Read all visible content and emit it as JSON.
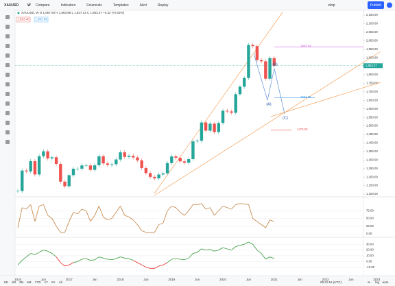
{
  "toolbar": {
    "symbol": "XAUUSD",
    "interval": "W",
    "buttons": [
      "Compare",
      "Indicators",
      "Financials",
      "Templates",
      "Alert",
      "Replay"
    ],
    "user": "vikrp",
    "publish": "Publish"
  },
  "legend": {
    "ohlc": "XAUUSD, W  O 1,857.00  H 1,863.86  L 1,837.13  C 1,853.27  +0.32 (+0.02%)",
    "bid": "1,853.46",
    "ask": "1,853.69"
  },
  "chart": {
    "type": "candlestick",
    "closes": [
      1118,
      1238,
      1233,
      1293,
      1215,
      1322,
      1351,
      1309,
      1316,
      1277,
      1173,
      1146,
      1211,
      1249,
      1249,
      1268,
      1268,
      1242,
      1269,
      1322,
      1280,
      1271,
      1275,
      1303,
      1345,
      1318,
      1325,
      1315,
      1298,
      1253,
      1223,
      1201,
      1192,
      1215,
      1222,
      1282,
      1321,
      1313,
      1292,
      1284,
      1305,
      1409,
      1413,
      1520,
      1472,
      1513,
      1464,
      1517,
      1589,
      1585,
      1577,
      1686,
      1730,
      1781,
      1975,
      1968,
      1886,
      1879,
      1777,
      1898,
      1853
    ],
    "ylim": [
      1100,
      2150
    ],
    "yticks": [
      {
        "value": 2150,
        "label": "2,150.00"
      },
      {
        "value": 2100,
        "label": "2,100.00"
      },
      {
        "value": 2050,
        "label": "2,050.00"
      },
      {
        "value": 2000,
        "label": "2,000.00"
      },
      {
        "value": 1950,
        "label": "1,950.00"
      },
      {
        "value": 1900,
        "label": "1,900.00"
      },
      {
        "value": 1850,
        "label": "1,850.00"
      },
      {
        "value": 1800,
        "label": "1,800.00"
      },
      {
        "value": 1750,
        "label": "1,750.00"
      },
      {
        "value": 1700,
        "label": "1,700.00"
      },
      {
        "value": 1650,
        "label": "1,650.00"
      },
      {
        "value": 1600,
        "label": "1,600.00"
      },
      {
        "value": 1550,
        "label": "1,550.00"
      },
      {
        "value": 1500,
        "label": "1,500.00"
      },
      {
        "value": 1450,
        "label": "1,450.00"
      },
      {
        "value": 1400,
        "label": "1,400.00"
      },
      {
        "value": 1350,
        "label": "1,350.00"
      },
      {
        "value": 1300,
        "label": "1,300.00"
      },
      {
        "value": 1250,
        "label": "1,250.00"
      },
      {
        "value": 1200,
        "label": "1,200.00"
      },
      {
        "value": 1150,
        "label": "1,150.00"
      },
      {
        "value": 1100,
        "label": "1,100.00"
      }
    ],
    "time_labels": [
      "2016",
      "Jun",
      "2017",
      "Jun",
      "2018",
      "Jun",
      "2019",
      "Jun",
      "2020",
      "Jun",
      "2021",
      "Jun",
      "2022",
      "Jun",
      "2023"
    ],
    "levels": [
      {
        "value": 1963.34,
        "label": "1963.34"
      },
      {
        "value": 1664.76,
        "label": "1664.76"
      },
      {
        "value": 1475,
        "label": "1475.00"
      }
    ],
    "waves": [
      "(A)",
      "(B)",
      "(C)"
    ],
    "last_price": {
      "value": 1853.27,
      "label": "1,853.27"
    }
  },
  "oscillator": {
    "type": "line",
    "color": "#c58a4e",
    "values": [
      20,
      85,
      80,
      95,
      40,
      90,
      95,
      60,
      50,
      25,
      5,
      5,
      40,
      70,
      65,
      80,
      75,
      40,
      60,
      90,
      55,
      45,
      50,
      70,
      90,
      60,
      55,
      45,
      30,
      10,
      5,
      5,
      5,
      30,
      35,
      75,
      90,
      85,
      70,
      60,
      75,
      95,
      95,
      98,
      80,
      85,
      60,
      75,
      90,
      85,
      80,
      95,
      98,
      97,
      95,
      50,
      40,
      30,
      20,
      45,
      40
    ],
    "ylim": [
      0,
      100
    ],
    "yticks": [
      {
        "value": 75,
        "label": "75.00"
      },
      {
        "value": 50,
        "label": "50.00"
      },
      {
        "value": 25,
        "label": "25.00"
      },
      {
        "value": 0,
        "label": "0.00"
      }
    ]
  },
  "momentum": {
    "type": "line",
    "values": [
      -6,
      2,
      8,
      14,
      12,
      16,
      20,
      18,
      14,
      8,
      -2,
      -8,
      -6,
      -2,
      0,
      4,
      5,
      2,
      3,
      8,
      6,
      4,
      3,
      5,
      8,
      6,
      5,
      2,
      -2,
      -6,
      -10,
      -12,
      -12,
      -8,
      -6,
      -2,
      4,
      5,
      4,
      3,
      6,
      14,
      16,
      22,
      20,
      21,
      18,
      20,
      24,
      22,
      20,
      26,
      28,
      30,
      34,
      30,
      20,
      14,
      4,
      8,
      5
    ],
    "ylim": [
      -20,
      35
    ],
    "yticks": [
      {
        "value": 30,
        "label": "30.00"
      },
      {
        "value": 20,
        "label": "20.00"
      },
      {
        "value": 10,
        "label": "10.00"
      },
      {
        "value": 0,
        "label": "0.00"
      },
      {
        "value": -10,
        "label": "-10.00"
      }
    ]
  },
  "bottom_bar": {
    "ranges": [
      "5D",
      "1M",
      "3M",
      "6M",
      "YTD",
      "1Y",
      "5Y",
      "All"
    ],
    "clock": "09:41:16 (UTC)",
    "options": [
      "%",
      "log",
      "auto"
    ]
  }
}
